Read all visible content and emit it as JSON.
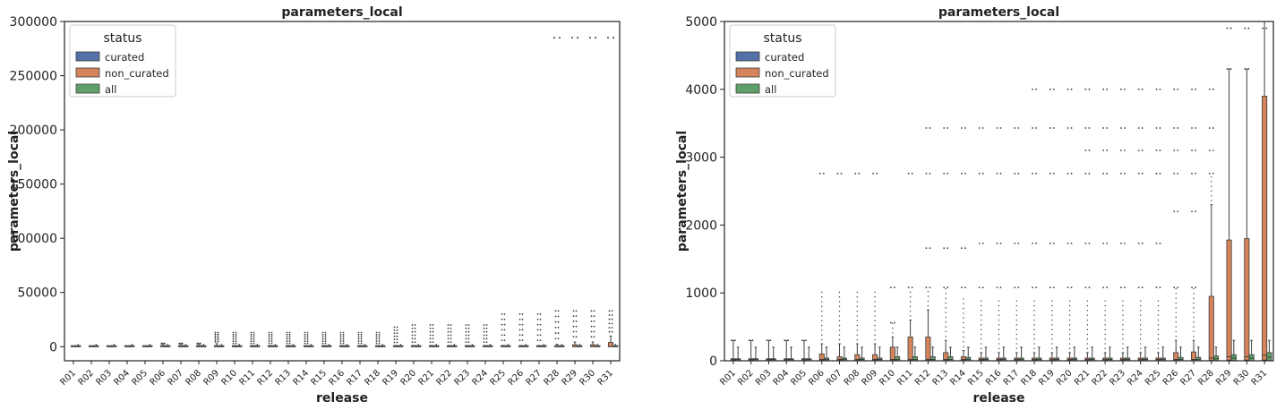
{
  "colors": {
    "curated": "#5470a8",
    "non_curated": "#d3845a",
    "all": "#5fa06a",
    "box_edge": "#3d3d3d",
    "axis": "#222222"
  },
  "releases": [
    "R01",
    "R02",
    "R03",
    "R04",
    "R05",
    "R06",
    "R07",
    "R08",
    "R09",
    "R10",
    "R11",
    "R12",
    "R13",
    "R14",
    "R15",
    "R16",
    "R17",
    "R18",
    "R19",
    "R20",
    "R21",
    "R22",
    "R23",
    "R24",
    "R25",
    "R26",
    "R27",
    "R28",
    "R29",
    "R30",
    "R31"
  ],
  "chart_data": [
    {
      "type": "box",
      "title": "parameters_local",
      "xlabel": "release",
      "ylabel": "parameters_local",
      "ylim": [
        -13000,
        300000
      ],
      "yticks": [
        0,
        50000,
        100000,
        150000,
        200000,
        250000,
        300000
      ],
      "ytick_labels": [
        "0",
        "50000",
        "100000",
        "150000",
        "200000",
        "250000",
        "300000"
      ],
      "grid": false,
      "legend": {
        "title": "status",
        "placement": "top-left",
        "entries": [
          {
            "label": "curated",
            "color_key": "curated"
          },
          {
            "label": "non_curated",
            "color_key": "non_curated"
          },
          {
            "label": "all",
            "color_key": "all"
          }
        ]
      },
      "series": [
        {
          "name": "non_curated",
          "color_key": "non_curated",
          "median": [
            20,
            20,
            20,
            20,
            20,
            20,
            20,
            20,
            20,
            20,
            20,
            20,
            20,
            20,
            20,
            20,
            20,
            20,
            20,
            20,
            20,
            20,
            20,
            20,
            20,
            20,
            20,
            40,
            60,
            60,
            80
          ],
          "q3": [
            30,
            30,
            30,
            30,
            30,
            100,
            60,
            90,
            90,
            200,
            350,
            350,
            120,
            60,
            40,
            40,
            40,
            40,
            40,
            40,
            40,
            40,
            40,
            40,
            40,
            120,
            130,
            950,
            1780,
            1800,
            3900
          ],
          "whisker_high": [
            300,
            300,
            300,
            300,
            300,
            2800,
            2800,
            2800,
            2800,
            1100,
            1100,
            1100,
            1100,
            1100,
            1100,
            1100,
            1100,
            1100,
            1100,
            1100,
            1100,
            1100,
            1100,
            1100,
            1100,
            1100,
            1100,
            2300,
            4300,
            4300,
            9800
          ],
          "outliers_max": [
            null,
            null,
            null,
            null,
            null,
            3000,
            3000,
            3000,
            13000,
            13000,
            13000,
            13000,
            13000,
            13000,
            13000,
            13000,
            13000,
            13000,
            18000,
            20000,
            20000,
            20000,
            20000,
            20000,
            30000,
            30000,
            30000,
            33000,
            33000,
            33000,
            33000
          ],
          "far_outliers": [
            null,
            null,
            null,
            null,
            null,
            null,
            null,
            null,
            null,
            null,
            null,
            null,
            null,
            null,
            null,
            null,
            null,
            null,
            null,
            null,
            null,
            null,
            null,
            null,
            null,
            null,
            null,
            285000,
            285000,
            285000,
            285000
          ]
        },
        {
          "name": "all",
          "color_key": "all",
          "median": [
            20,
            20,
            20,
            20,
            20,
            20,
            20,
            20,
            20,
            20,
            20,
            20,
            20,
            20,
            20,
            20,
            20,
            20,
            20,
            20,
            20,
            20,
            20,
            20,
            20,
            20,
            20,
            30,
            40,
            40,
            50
          ],
          "q3": [
            30,
            30,
            30,
            30,
            30,
            40,
            40,
            40,
            40,
            60,
            60,
            60,
            60,
            50,
            40,
            40,
            40,
            40,
            40,
            40,
            40,
            40,
            40,
            40,
            40,
            50,
            50,
            70,
            90,
            90,
            120
          ],
          "whisker_high": [
            200,
            200,
            200,
            200,
            200,
            200,
            200,
            200,
            200,
            200,
            200,
            200,
            200,
            200,
            200,
            200,
            200,
            200,
            200,
            200,
            200,
            200,
            200,
            200,
            200,
            200,
            200,
            200,
            300,
            300,
            300
          ]
        }
      ]
    },
    {
      "type": "box",
      "title": "parameters_local",
      "xlabel": "release",
      "ylabel": "parameters_local",
      "ylim": [
        0,
        5000
      ],
      "yticks": [
        0,
        1000,
        2000,
        3000,
        4000,
        5000
      ],
      "ytick_labels": [
        "0",
        "1000",
        "2000",
        "3000",
        "4000",
        "5000"
      ],
      "grid": false,
      "legend": {
        "title": "status",
        "placement": "top-left",
        "entries": [
          {
            "label": "curated",
            "color_key": "curated"
          },
          {
            "label": "non_curated",
            "color_key": "non_curated"
          },
          {
            "label": "all",
            "color_key": "all"
          }
        ]
      },
      "series": [
        {
          "name": "non_curated",
          "color_key": "non_curated",
          "q1": [
            5,
            5,
            5,
            5,
            5,
            5,
            5,
            5,
            5,
            5,
            5,
            5,
            5,
            5,
            5,
            5,
            5,
            5,
            5,
            5,
            5,
            5,
            5,
            5,
            5,
            5,
            5,
            5,
            10,
            10,
            10
          ],
          "median": [
            20,
            20,
            20,
            20,
            20,
            20,
            20,
            20,
            20,
            20,
            20,
            20,
            20,
            20,
            20,
            20,
            20,
            20,
            20,
            20,
            20,
            20,
            20,
            20,
            20,
            20,
            20,
            40,
            60,
            60,
            80
          ],
          "q3": [
            30,
            30,
            30,
            30,
            30,
            100,
            60,
            90,
            90,
            200,
            350,
            350,
            120,
            60,
            40,
            40,
            40,
            40,
            40,
            40,
            40,
            40,
            40,
            40,
            40,
            120,
            130,
            950,
            1780,
            1800,
            3900
          ],
          "whisker_high": [
            300,
            300,
            300,
            300,
            300,
            250,
            250,
            250,
            250,
            350,
            600,
            750,
            300,
            150,
            120,
            120,
            120,
            120,
            120,
            120,
            120,
            120,
            120,
            120,
            120,
            300,
            300,
            2300,
            4300,
            4300,
            5000
          ],
          "outliers": [
            [
              300
            ],
            [
              300
            ],
            [
              300
            ],
            [
              300
            ],
            [
              300
            ],
            [
              2760
            ],
            [
              2760
            ],
            [
              2760
            ],
            [
              2760
            ],
            [
              560,
              1080
            ],
            [
              1080,
              2760
            ],
            [
              1080,
              1660,
              2760,
              3430
            ],
            [
              1080,
              1660,
              2760,
              3430
            ],
            [
              1080,
              1660,
              2760,
              3430
            ],
            [
              1080,
              1730,
              2760,
              3430
            ],
            [
              1080,
              1730,
              2760,
              3430
            ],
            [
              1080,
              1730,
              2760,
              3430
            ],
            [
              1080,
              1730,
              2760,
              3430,
              4000
            ],
            [
              1080,
              1730,
              2760,
              3430,
              4000
            ],
            [
              1080,
              1730,
              2760,
              3430,
              4000
            ],
            [
              1080,
              1730,
              2760,
              3100,
              3430,
              4000
            ],
            [
              1080,
              1730,
              2760,
              3100,
              3430,
              4000
            ],
            [
              1080,
              1730,
              2760,
              3100,
              3430,
              4000
            ],
            [
              1080,
              1730,
              2760,
              3100,
              3430,
              4000
            ],
            [
              1080,
              1730,
              2760,
              3100,
              3430,
              4000
            ],
            [
              1080,
              2200,
              2760,
              3100,
              3430,
              4000
            ],
            [
              1080,
              2200,
              2760,
              3100,
              3430,
              4000
            ],
            [
              2760,
              3100,
              3430,
              4000
            ],
            [
              4300,
              4900
            ],
            [
              4300,
              4900
            ],
            [
              4900
            ]
          ]
        },
        {
          "name": "all",
          "color_key": "all",
          "median": [
            20,
            20,
            20,
            20,
            20,
            20,
            20,
            20,
            20,
            20,
            20,
            20,
            20,
            20,
            20,
            20,
            20,
            20,
            20,
            20,
            20,
            20,
            20,
            20,
            20,
            20,
            20,
            30,
            40,
            40,
            50
          ],
          "q3": [
            30,
            30,
            30,
            30,
            30,
            40,
            40,
            40,
            40,
            60,
            60,
            60,
            60,
            50,
            40,
            40,
            40,
            40,
            40,
            40,
            40,
            40,
            40,
            40,
            40,
            50,
            50,
            70,
            90,
            90,
            120
          ],
          "whisker_high": [
            200,
            200,
            200,
            200,
            200,
            200,
            200,
            200,
            200,
            200,
            200,
            200,
            200,
            200,
            200,
            200,
            200,
            200,
            200,
            200,
            200,
            200,
            200,
            200,
            200,
            200,
            200,
            200,
            300,
            300,
            300
          ]
        }
      ]
    }
  ]
}
